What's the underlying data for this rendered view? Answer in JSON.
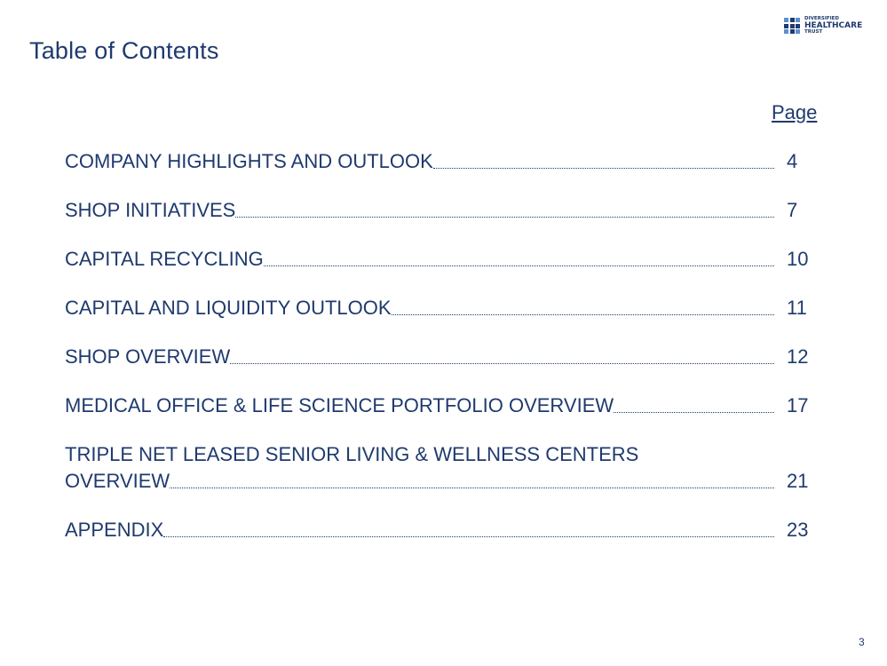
{
  "title": "Table of Contents",
  "logo": {
    "line1": "DIVERSIFIED",
    "line2": "HEALTHCARE",
    "line3": "TRUST"
  },
  "page_header": "Page",
  "entries": [
    {
      "label": "COMPANY HIGHLIGHTS AND OUTLOOK",
      "page": "4"
    },
    {
      "label": "SHOP INITIATIVES",
      "page": "7"
    },
    {
      "label": "CAPITAL RECYCLING",
      "page": "10"
    },
    {
      "label": "CAPITAL AND LIQUIDITY OUTLOOK",
      "page": "11"
    },
    {
      "label": "SHOP OVERVIEW",
      "page": "12"
    },
    {
      "label": "MEDICAL OFFICE & LIFE SCIENCE PORTFOLIO OVERVIEW",
      "page": "17"
    },
    {
      "label_line1": "TRIPLE NET LEASED SENIOR LIVING & WELLNESS CENTERS",
      "label": "OVERVIEW",
      "page": "21"
    },
    {
      "label": "APPENDIX",
      "page": "23"
    }
  ],
  "slide_number": "3",
  "colors": {
    "text": "#1f3a6e",
    "logo_light": "#5a8fd0"
  }
}
